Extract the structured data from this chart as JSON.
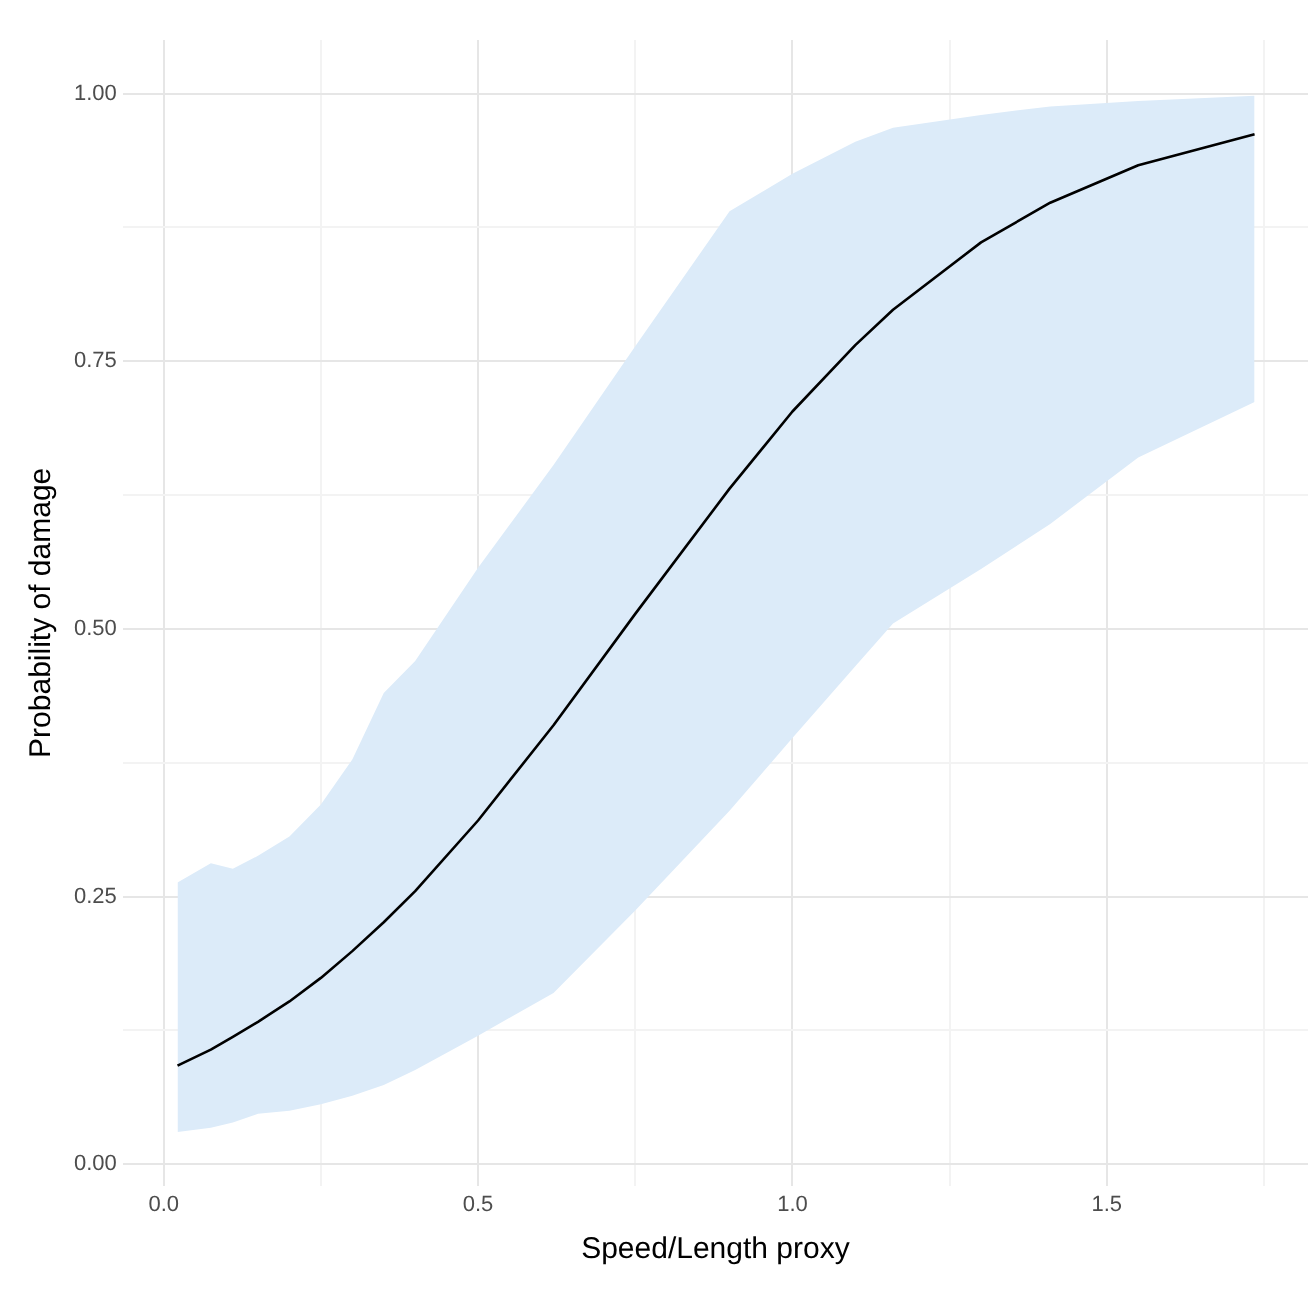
{
  "chart_data": {
    "type": "line",
    "xlabel": "Speed/Length proxy",
    "ylabel": "Probability of damage",
    "x": [
      0.022,
      0.075,
      0.11,
      0.15,
      0.2,
      0.25,
      0.3,
      0.35,
      0.4,
      0.5,
      0.62,
      0.75,
      0.9,
      1.0,
      1.1,
      1.16,
      1.3,
      1.41,
      1.55,
      1.735
    ],
    "series": [
      {
        "color": "#000000",
        "values": [
          0.092,
          0.107,
          0.119,
          0.133,
          0.152,
          0.174,
          0.199,
          0.226,
          0.255,
          0.321,
          0.41,
          0.514,
          0.631,
          0.703,
          0.765,
          0.798,
          0.861,
          0.898,
          0.933,
          0.962
        ],
        "upper": [
          0.263,
          0.281,
          0.276,
          0.288,
          0.306,
          0.336,
          0.378,
          0.44,
          0.47,
          0.557,
          0.653,
          0.764,
          0.89,
          0.925,
          0.955,
          0.968,
          0.98,
          0.988,
          0.993,
          0.998
        ],
        "lower": [
          0.03,
          0.034,
          0.039,
          0.047,
          0.05,
          0.056,
          0.064,
          0.074,
          0.088,
          0.12,
          0.16,
          0.237,
          0.33,
          0.398,
          0.465,
          0.505,
          0.556,
          0.598,
          0.66,
          0.712
        ]
      }
    ],
    "xlim": [
      -0.065,
      1.82
    ],
    "ylim": [
      -0.02,
      1.05
    ],
    "xticks": [
      {
        "value": 0,
        "label": "0.0"
      },
      {
        "value": 0.25,
        "label": null
      },
      0.5,
      {
        "value": 0.75,
        "label": null
      },
      {
        "value": 1,
        "label": "1.0"
      },
      {
        "value": 1.25,
        "label": null
      },
      1.5,
      {
        "value": 1.75,
        "label": null
      }
    ],
    "yticks": [
      {
        "value": 0,
        "label": "0.00"
      },
      {
        "value": 0.125,
        "label": null
      },
      0.25,
      {
        "value": 0.375,
        "label": null
      },
      {
        "value": 0.5,
        "label": "0.50"
      },
      {
        "value": 0.625,
        "label": null
      },
      0.75,
      {
        "value": 0.875,
        "label": null
      },
      {
        "value": 1,
        "label": "1.00"
      }
    ],
    "grid": true,
    "legend": false,
    "marker": "none",
    "line_style": "solid"
  }
}
